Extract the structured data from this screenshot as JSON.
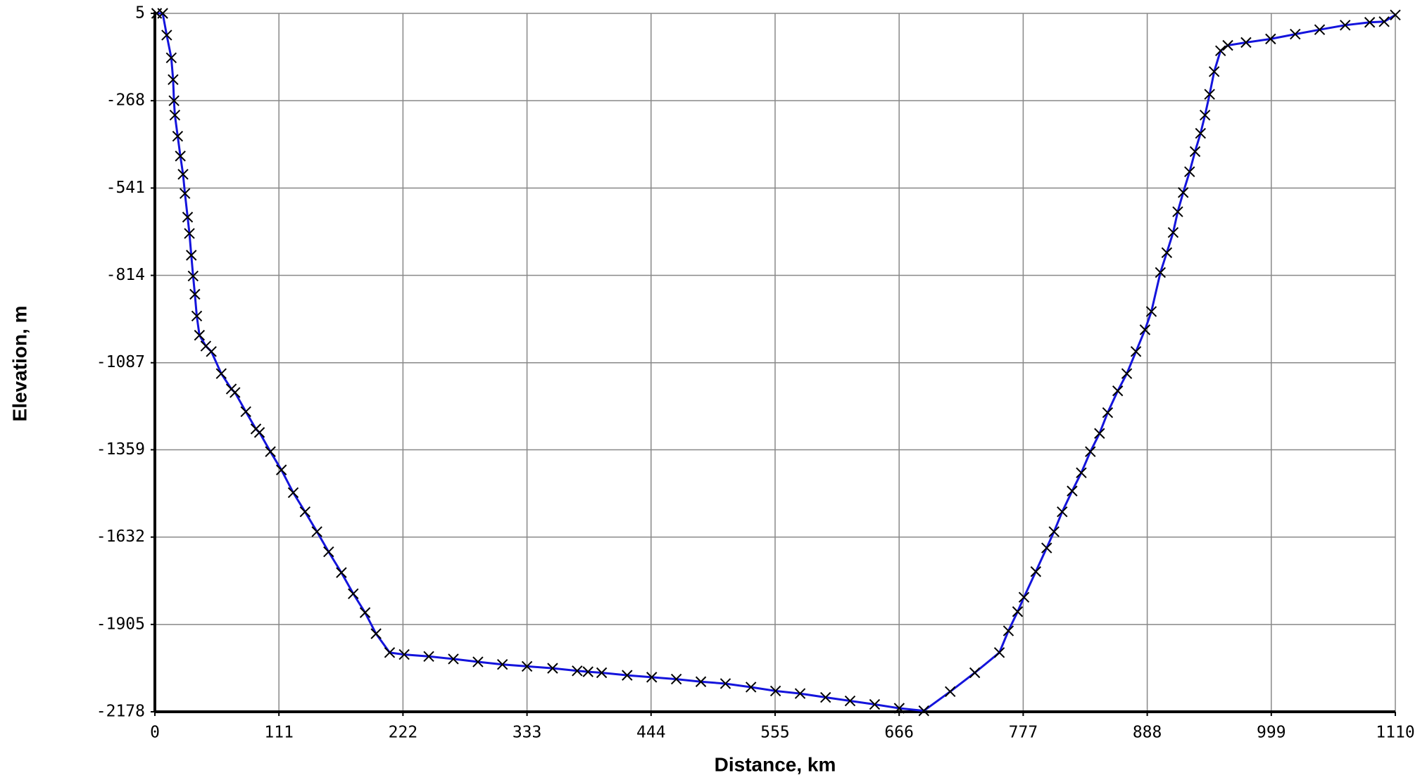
{
  "chart_data": {
    "type": "line",
    "x_label": "Distance, km",
    "y_label": "Elevation, m",
    "xlim": [
      0,
      1110
    ],
    "xticks": [
      0,
      111,
      222,
      333,
      444,
      555,
      666,
      777,
      888,
      999,
      1110
    ],
    "ylim": [
      -2178,
      5
    ],
    "yticks": [
      5,
      -268,
      -541,
      -814,
      -1087,
      -1359,
      -1632,
      -1905,
      -2178
    ],
    "grid": true,
    "series": [
      {
        "color": "#1414dc",
        "marker": "x",
        "marker_color": "#000000",
        "x": [
          1.6,
          7,
          10.6,
          14.7,
          16.3,
          17.1,
          17.9,
          20.4,
          22.8,
          25.2,
          26.9,
          29.3,
          30.9,
          32.6,
          34.2,
          35.8,
          37.5,
          39.9,
          45.6,
          50.5,
          59.4,
          68.4,
          71.7,
          81.4,
          90.4,
          93.6,
          103.4,
          113.2,
          123.8,
          134.4,
          145,
          155.5,
          166.9,
          177.5,
          188.1,
          197.9,
          210.1,
          223.1,
          245.1,
          267.1,
          289.1,
          311,
          333,
          355.9,
          377.9,
          387.6,
          399.8,
          422.6,
          444.6,
          466.6,
          488.6,
          510.6,
          533.4,
          555.4,
          577.4,
          600.2,
          622.1,
          644.1,
          666.1,
          688.1,
          711.7,
          733.7,
          755.7,
          763.8,
          772,
          777.7,
          788.3,
          798,
          804.6,
          811.9,
          820.8,
          829,
          837.1,
          845.3,
          852.6,
          861.6,
          869.7,
          877.9,
          886,
          891.7,
          899.8,
          905.5,
          911.2,
          915.3,
          920.2,
          925.9,
          930.8,
          935.7,
          939.7,
          943.8,
          947.9,
          953.6,
          960.1,
          976.4,
          998.4,
          1020.4,
          1042.3,
          1065.1,
          1087.1,
          1100,
          1110
        ],
        "values": [
          5,
          5,
          -63,
          -134,
          -202,
          -268,
          -313,
          -379,
          -441,
          -498,
          -558,
          -632,
          -683,
          -751,
          -816,
          -873,
          -941,
          -1001,
          -1035,
          -1052,
          -1121,
          -1169,
          -1180,
          -1240,
          -1294,
          -1305,
          -1365,
          -1422,
          -1493,
          -1553,
          -1615,
          -1678,
          -1743,
          -1809,
          -1868,
          -1934,
          -1993,
          -1999,
          -2005,
          -2013,
          -2022,
          -2030,
          -2036,
          -2042,
          -2050,
          -2053,
          -2056,
          -2064,
          -2070,
          -2076,
          -2084,
          -2090,
          -2101,
          -2113,
          -2121,
          -2133,
          -2144,
          -2155,
          -2167,
          -2175,
          -2115,
          -2056,
          -1993,
          -1925,
          -1865,
          -1820,
          -1740,
          -1666,
          -1615,
          -1553,
          -1488,
          -1431,
          -1365,
          -1308,
          -1243,
          -1175,
          -1121,
          -1052,
          -984,
          -927,
          -805,
          -743,
          -680,
          -615,
          -555,
          -490,
          -427,
          -370,
          -313,
          -248,
          -177,
          -112,
          -95,
          -86,
          -75,
          -60,
          -46,
          -32,
          -23,
          -21,
          0
        ]
      }
    ]
  }
}
